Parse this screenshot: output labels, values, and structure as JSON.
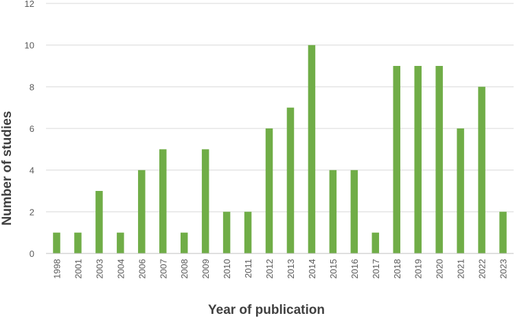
{
  "chart_data": {
    "type": "bar",
    "title": "",
    "xlabel": "Year of publication",
    "ylabel": "Number of studies",
    "ylim": [
      0,
      12
    ],
    "yticks": [
      0,
      2,
      4,
      6,
      8,
      10,
      12
    ],
    "grid": true,
    "legend": "none",
    "bar_color": "#70ad47",
    "categories": [
      "1998",
      "2001",
      "2003",
      "2004",
      "2006",
      "2007",
      "2008",
      "2009",
      "2010",
      "2011",
      "2012",
      "2013",
      "2014",
      "2015",
      "2016",
      "2017",
      "2018",
      "2019",
      "2020",
      "2021",
      "2022",
      "2023"
    ],
    "values": [
      1,
      1,
      3,
      1,
      4,
      5,
      1,
      5,
      2,
      2,
      6,
      7,
      10,
      4,
      4,
      1,
      9,
      9,
      9,
      6,
      8,
      2
    ]
  }
}
